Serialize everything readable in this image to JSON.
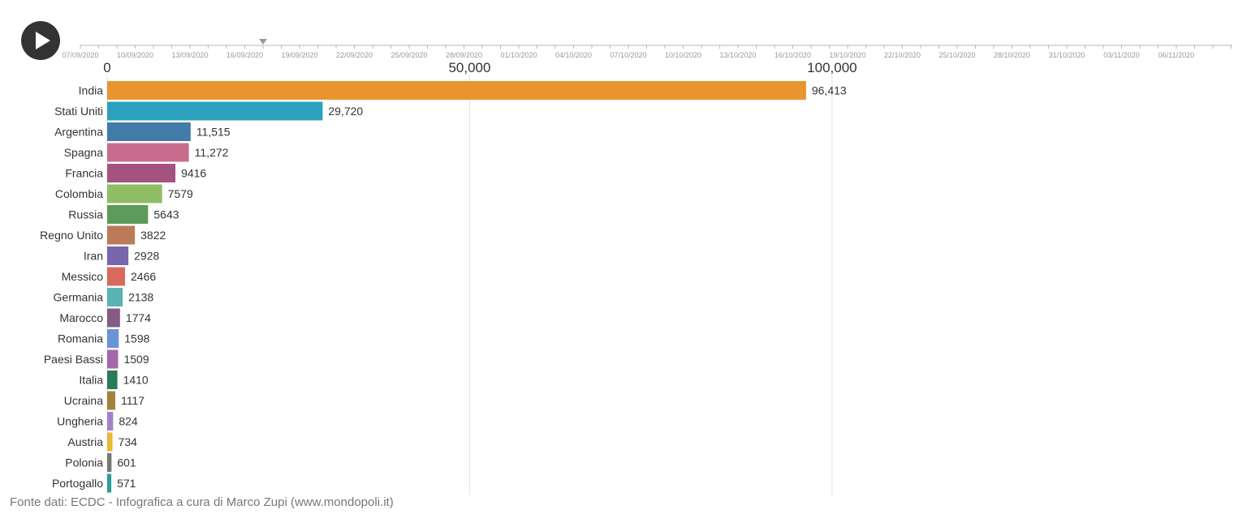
{
  "controls": {
    "play_icon": "play-icon"
  },
  "timeline": {
    "dates": [
      "07/09/2020",
      "10/09/2020",
      "13/09/2020",
      "16/09/2020",
      "19/09/2020",
      "22/09/2020",
      "25/09/2020",
      "28/09/2020",
      "01/10/2020",
      "04/10/2020",
      "07/10/2020",
      "10/10/2020",
      "13/10/2020",
      "16/10/2020",
      "19/10/2020",
      "22/10/2020",
      "25/10/2020",
      "28/10/2020",
      "31/10/2020",
      "03/11/2020",
      "06/11/2020"
    ],
    "current_date": "17/09/2020"
  },
  "chart_data": {
    "type": "bar",
    "orientation": "horizontal",
    "xlim": [
      0,
      155000
    ],
    "x_ticks": [
      0,
      50000,
      100000
    ],
    "x_tick_labels": [
      "0",
      "50,000",
      "100,000"
    ],
    "grid": true,
    "categories": [
      "India",
      "Stati Uniti",
      "Argentina",
      "Spagna",
      "Francia",
      "Colombia",
      "Russia",
      "Regno Unito",
      "Iran",
      "Messico",
      "Germania",
      "Marocco",
      "Romania",
      "Paesi Bassi",
      "Italia",
      "Ucraina",
      "Ungheria",
      "Austria",
      "Polonia",
      "Portogallo"
    ],
    "values": [
      96413,
      29720,
      11515,
      11272,
      9416,
      7579,
      5643,
      3822,
      2928,
      2466,
      2138,
      1774,
      1598,
      1509,
      1410,
      1117,
      824,
      734,
      601,
      571
    ],
    "value_labels": [
      "96,413",
      "29,720",
      "11,515",
      "11,272",
      "9416",
      "7579",
      "5643",
      "3822",
      "2928",
      "2466",
      "2138",
      "1774",
      "1598",
      "1509",
      "1410",
      "1117",
      "824",
      "734",
      "601",
      "571"
    ],
    "colors": [
      "#e8952f",
      "#2ba1bd",
      "#427ba7",
      "#c96d8e",
      "#a4527f",
      "#8fbd66",
      "#5d9b5b",
      "#bb7b59",
      "#7766a9",
      "#d9695d",
      "#5bb3b3",
      "#845b83",
      "#6b93d6",
      "#a467ac",
      "#2a7b58",
      "#a0833d",
      "#a283c9",
      "#e8b934",
      "#777777",
      "#2a9d9a"
    ]
  },
  "footer": {
    "source": "Fonte dati: ECDC - Infografica a cura di Marco Zupi (www.mondopoli.it)"
  }
}
